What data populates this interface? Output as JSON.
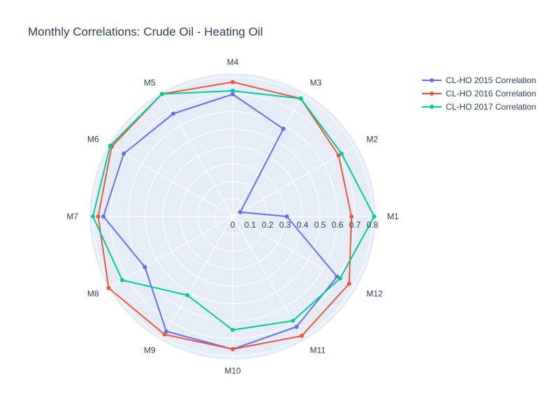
{
  "chart_data": {
    "type": "line",
    "subtype": "polar",
    "title": "Monthly Correlations: Crude Oil - Heating Oil",
    "categories": [
      "M1",
      "M2",
      "M3",
      "M4",
      "M5",
      "M6",
      "M7",
      "M8",
      "M9",
      "M10",
      "M11",
      "M12"
    ],
    "radial_ticks": [
      "0",
      "0.1",
      "0.2",
      "0.3",
      "0.4",
      "0.5",
      "0.6",
      "0.7",
      "0.8"
    ],
    "radial_range": [
      0,
      0.82
    ],
    "angular_direction": "counterclockwise",
    "angular_rotation_deg": 0,
    "grid": true,
    "legend_position": "top-right",
    "background_color": "#e5ecf6",
    "series": [
      {
        "name": "CL-HO 2015 Correlation",
        "color": "#636efa",
        "values": [
          0.31,
          0.05,
          0.58,
          0.7,
          0.68,
          0.72,
          0.74,
          0.58,
          0.76,
          0.76,
          0.73,
          0.69
        ]
      },
      {
        "name": "CL-HO 2016 Correlation",
        "color": "#ef553b",
        "values": [
          0.68,
          0.7,
          0.78,
          0.77,
          0.81,
          0.8,
          0.77,
          0.82,
          0.78,
          0.76,
          0.79,
          0.77
        ]
      },
      {
        "name": "CL-HO 2017 Correlation",
        "color": "#00cc96",
        "values": [
          0.81,
          0.72,
          0.78,
          0.72,
          0.81,
          0.81,
          0.8,
          0.73,
          0.52,
          0.65,
          0.69,
          0.71
        ]
      }
    ]
  }
}
